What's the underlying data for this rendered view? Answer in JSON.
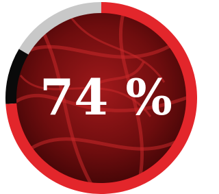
{
  "chart_data": {
    "type": "progress-ring",
    "values": [
      74
    ],
    "value_labels": [
      "74 %"
    ],
    "ylim": [
      0,
      100
    ],
    "color": "#e3262b"
  }
}
